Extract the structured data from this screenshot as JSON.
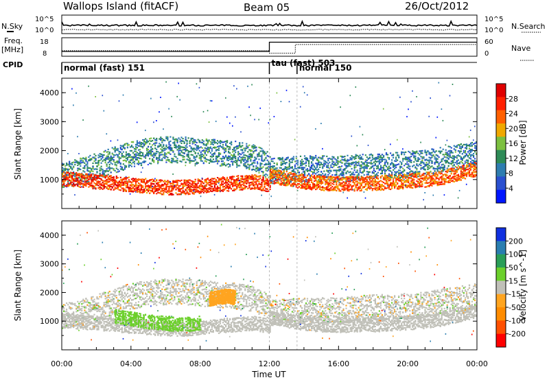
{
  "header": {
    "station": "Wallops Island (fitACF)",
    "beam": "Beam 05",
    "date": "26/Oct/2012"
  },
  "noise_panel": {
    "left_label": "N.Sky",
    "right_label": "N.Search",
    "left_ticks": [
      "10^5",
      "10^0"
    ],
    "right_ticks": [
      "10^5",
      "10^0"
    ]
  },
  "freq_panel": {
    "left_label_1": "Freq.",
    "left_label_2": "[MHz]",
    "left_ticks": [
      "18",
      "8"
    ],
    "right_label": "Nave",
    "right_ticks": [
      "60",
      "0"
    ],
    "freq_mhz": [
      {
        "from": 0,
        "to": 12,
        "value": 10.6
      },
      {
        "from": 12,
        "to": 24,
        "value": 15.6
      }
    ],
    "nave": [
      {
        "from": 0,
        "to": 12,
        "value": 18
      },
      {
        "from": 12,
        "to": 13.5,
        "value": 10
      },
      {
        "from": 13.5,
        "to": 24,
        "value": 38
      }
    ]
  },
  "cpid": {
    "label": "CPID",
    "segments": [
      {
        "label": "normal (fast) 151",
        "start": 0,
        "end": 12
      },
      {
        "label": "tau (fast) 503",
        "start": 12,
        "end": 13.6
      },
      {
        "label": "normal 150",
        "start": 13.6,
        "end": 24
      }
    ]
  },
  "colors": {
    "power": [
      "#0016ff",
      "#2a50d0",
      "#2e7db0",
      "#2e8b57",
      "#7cc040",
      "#f0a800",
      "#ff6000",
      "#ff2000",
      "#e00000"
    ],
    "velocity": [
      "#ff0000",
      "#ff5000",
      "#ff8c00",
      "#ffa520",
      "#c0c0b8",
      "#6cd02c",
      "#2a9e58",
      "#2a7eb0",
      "#1030e0"
    ]
  },
  "chart_data": [
    {
      "type": "heatmap",
      "title": "",
      "xlabel": "Time UT",
      "ylabel": "Slant Range [km]",
      "xlim": [
        0,
        24
      ],
      "ylim": [
        0,
        4500
      ],
      "x_ticks": [
        "00:00",
        "04:00",
        "08:00",
        "12:00",
        "16:00",
        "20:00",
        "00:00"
      ],
      "y_ticks": [
        1000,
        2000,
        3000,
        4000
      ],
      "colorbar": {
        "label": "Power [dB]",
        "ticks": [
          "28",
          "24",
          "20",
          "16",
          "12",
          "8",
          "4"
        ],
        "range": [
          0,
          30
        ]
      },
      "scatter_bands": [
        {
          "t": [
            0,
            1,
            2,
            3,
            4,
            5,
            6,
            7,
            8,
            9,
            10,
            11,
            12
          ],
          "r": [
            1200,
            1300,
            1500,
            1700,
            1900,
            2000,
            2050,
            2050,
            2000,
            1950,
            1900,
            1800,
            1500
          ],
          "power": 10
        },
        {
          "t": [
            12,
            13,
            14,
            15,
            16,
            17,
            18,
            19,
            20,
            21,
            22,
            23,
            24
          ],
          "r": [
            1300,
            1350,
            1400,
            1400,
            1400,
            1450,
            1500,
            1500,
            1550,
            1600,
            1700,
            1800,
            1900
          ],
          "power": 9
        }
      ],
      "strong_echoes": [
        {
          "t": [
            0,
            1,
            2,
            3,
            4,
            5,
            6,
            7,
            8,
            9,
            10,
            11,
            12
          ],
          "r": [
            950,
            900,
            850,
            800,
            750,
            700,
            650,
            650,
            700,
            750,
            800,
            850,
            750
          ],
          "power": 24
        },
        {
          "t": [
            12,
            13,
            14,
            15,
            16,
            17,
            18,
            19,
            20,
            21,
            22,
            23,
            24
          ],
          "r": [
            1050,
            950,
            850,
            800,
            780,
            780,
            800,
            830,
            870,
            920,
            1000,
            1150,
            1300
          ],
          "power": 22
        }
      ]
    },
    {
      "type": "heatmap",
      "title": "",
      "xlabel": "Time UT",
      "ylabel": "Slant Range [km]",
      "xlim": [
        0,
        24
      ],
      "ylim": [
        0,
        4500
      ],
      "x_ticks": [
        "00:00",
        "04:00",
        "08:00",
        "12:00",
        "16:00",
        "20:00",
        "00:00"
      ],
      "y_ticks": [
        1000,
        2000,
        3000,
        4000
      ],
      "colorbar": {
        "label": "Velocity [m s^-1]",
        "ticks": [
          "200",
          "100",
          "50",
          "15",
          "-15",
          "-50",
          "-100",
          "-200"
        ],
        "range": [
          -250,
          250
        ]
      },
      "ground_scatter_velocity": 0,
      "ionospheric_velocity_regions": [
        {
          "t": [
            3,
            4,
            5,
            6,
            7,
            8
          ],
          "r": [
            1200,
            1100,
            1000,
            950,
            900,
            950
          ],
          "velocity": 40
        },
        {
          "t": [
            8.5,
            9,
            9.5,
            10
          ],
          "r": [
            1800,
            1850,
            1900,
            1850
          ],
          "velocity": -60
        }
      ]
    }
  ]
}
